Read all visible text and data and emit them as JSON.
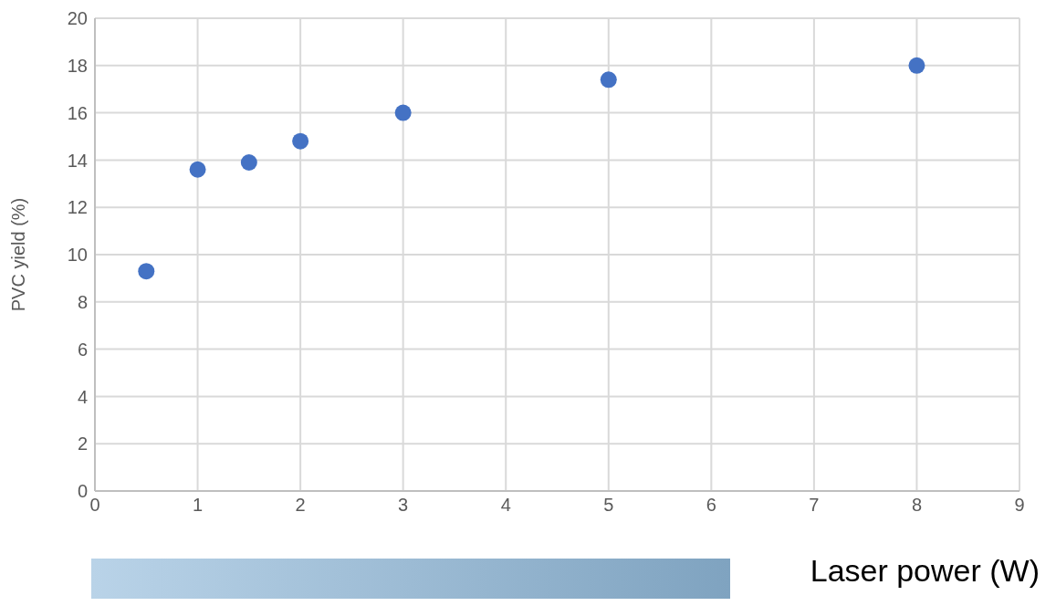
{
  "chart_data": {
    "type": "scatter",
    "xlabel": "Laser power (W)",
    "ylabel": "PVC yield (%)",
    "x": [
      0.5,
      1,
      1.5,
      2,
      3,
      5,
      8
    ],
    "values": [
      9.3,
      13.6,
      13.9,
      14.8,
      16.0,
      17.4,
      18.0
    ],
    "color": "#4472c4",
    "marker": "circle",
    "xlim": [
      0,
      9
    ],
    "xticks": [
      0,
      1,
      2,
      3,
      4,
      5,
      6,
      7,
      8,
      9
    ],
    "ylim": [
      0,
      20
    ],
    "yticks": [
      0,
      2,
      4,
      6,
      8,
      10,
      12,
      14,
      16,
      18,
      20
    ],
    "grid": true,
    "legend": false
  }
}
